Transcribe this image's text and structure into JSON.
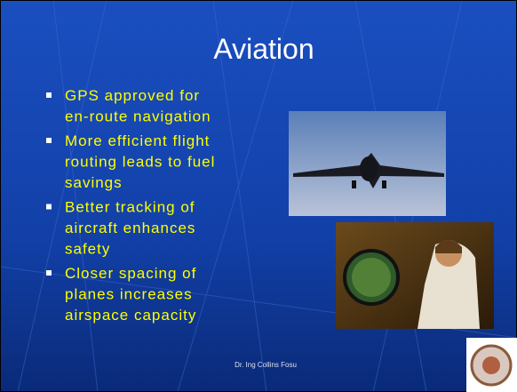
{
  "slide": {
    "title": "Aviation",
    "bullets": [
      [
        "GPS approved for",
        "en-route navigation"
      ],
      [
        "More efficient flight",
        "routing leads to fuel",
        "savings"
      ],
      [
        "Better tracking of",
        "aircraft enhances",
        "safety"
      ],
      [
        "Closer spacing of",
        "planes increases",
        "airspace capacity"
      ]
    ],
    "footer": "Dr. Ing Collins Fosu"
  }
}
